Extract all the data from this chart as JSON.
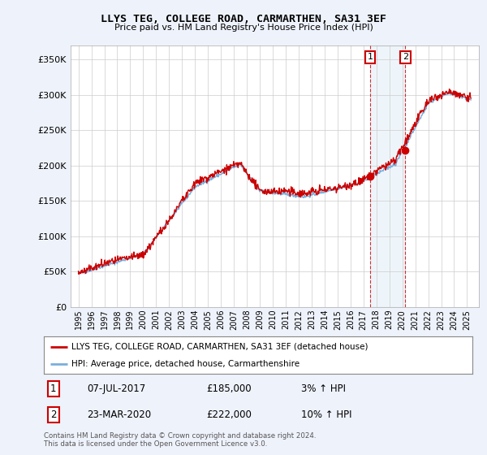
{
  "title": "LLYS TEG, COLLEGE ROAD, CARMARTHEN, SA31 3EF",
  "subtitle": "Price paid vs. HM Land Registry's House Price Index (HPI)",
  "legend_label1": "LLYS TEG, COLLEGE ROAD, CARMARTHEN, SA31 3EF (detached house)",
  "legend_label2": "HPI: Average price, detached house, Carmarthenshire",
  "annotation1": {
    "num": "1",
    "date": "07-JUL-2017",
    "price": "£185,000",
    "pct": "3% ↑ HPI"
  },
  "annotation2": {
    "num": "2",
    "date": "23-MAR-2020",
    "price": "£222,000",
    "pct": "10% ↑ HPI"
  },
  "footer": "Contains HM Land Registry data © Crown copyright and database right 2024.\nThis data is licensed under the Open Government Licence v3.0.",
  "color_red": "#cc0000",
  "color_blue": "#7aafdd",
  "ylim": [
    0,
    370000
  ],
  "yticks": [
    0,
    50000,
    100000,
    150000,
    200000,
    250000,
    300000,
    350000
  ],
  "background_color": "#eef2fb",
  "plot_bg": "#ffffff",
  "sale1_x": 2017.52,
  "sale1_y": 185000,
  "sale2_x": 2020.23,
  "sale2_y": 222000,
  "xlim_left": 1994.4,
  "xlim_right": 2025.9
}
